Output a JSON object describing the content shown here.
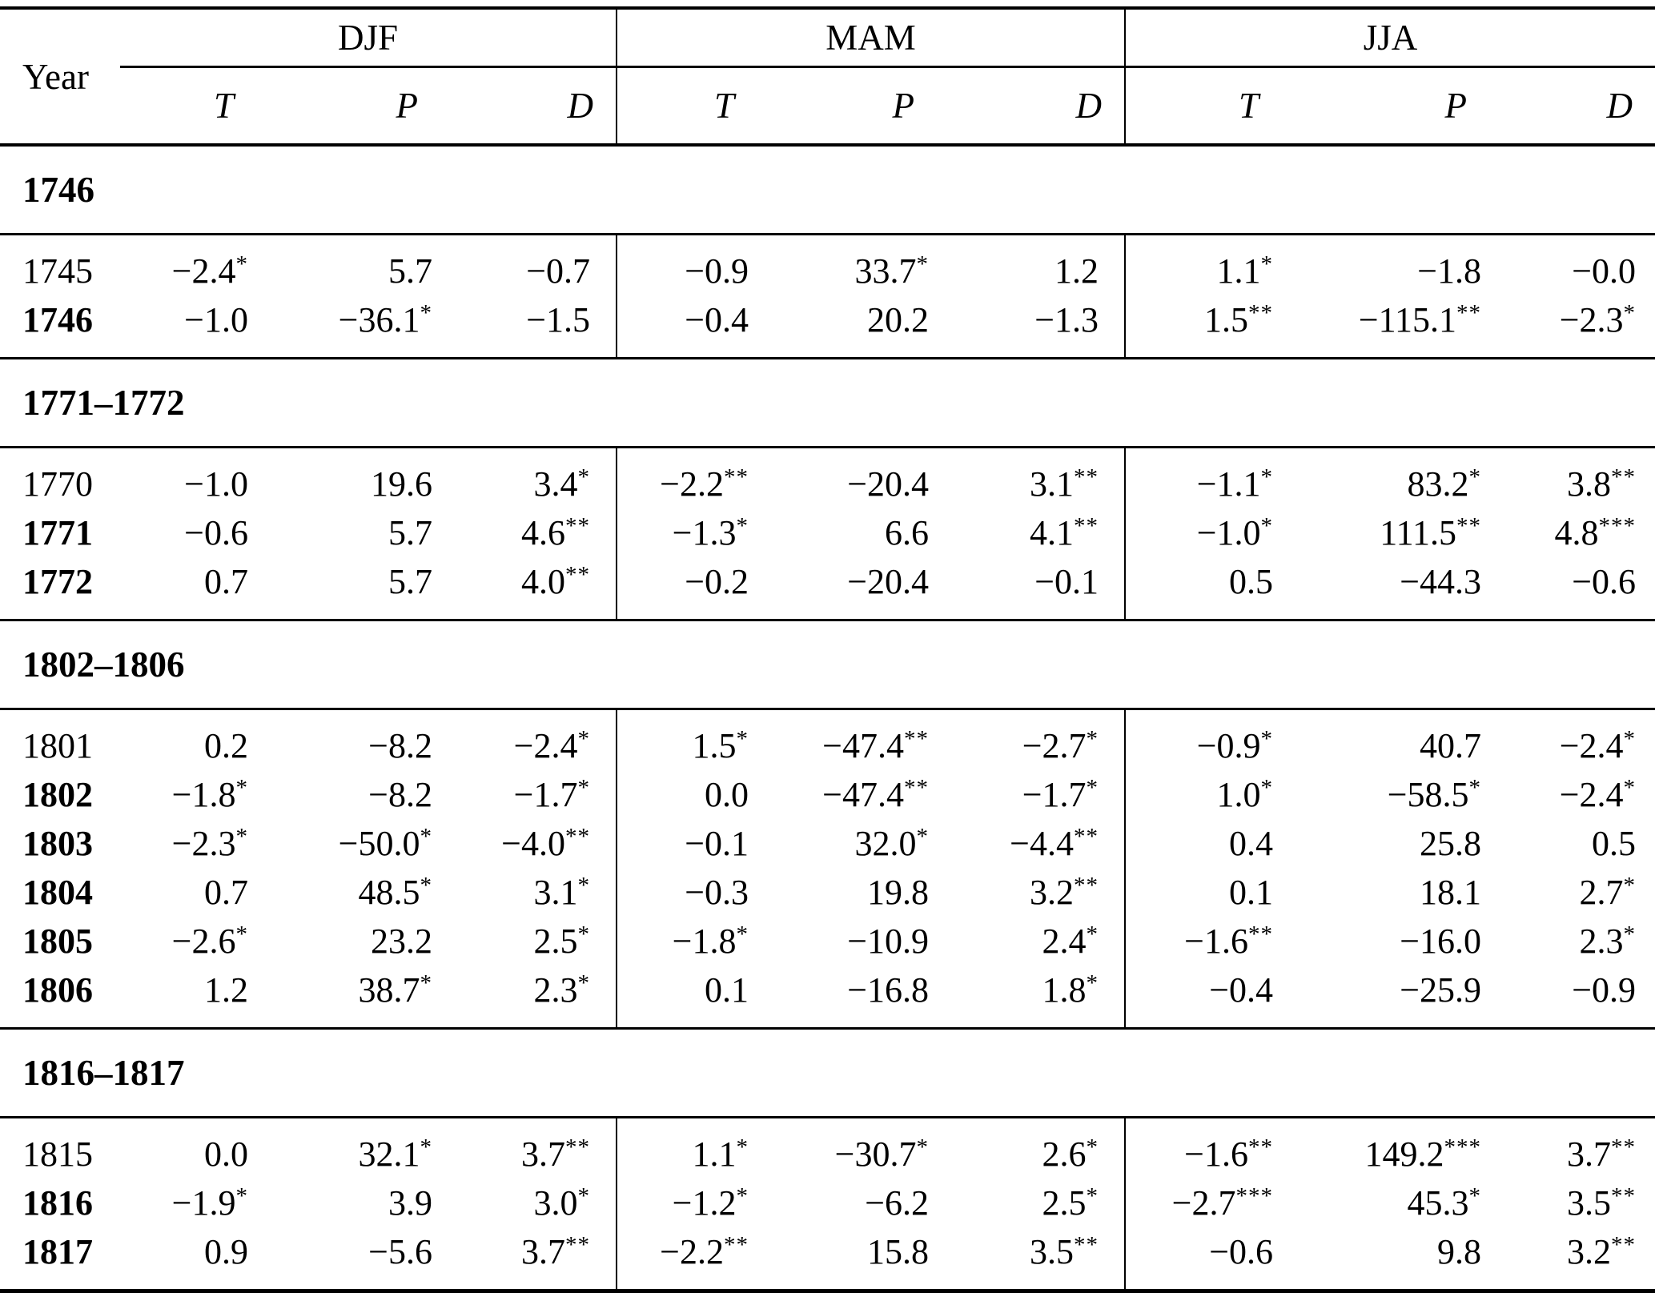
{
  "table": {
    "header": {
      "year": "Year",
      "groups": [
        {
          "label": "DJF",
          "sub": [
            "T",
            "P",
            "D"
          ]
        },
        {
          "label": "MAM",
          "sub": [
            "T",
            "P",
            "D"
          ]
        },
        {
          "label": "JJA",
          "sub": [
            "T",
            "P",
            "D"
          ]
        }
      ]
    },
    "sections": [
      {
        "title": "1746",
        "rows": [
          {
            "year": "1745",
            "bold": false,
            "values": [
              "−2.4*",
              "5.7",
              "−0.7",
              "−0.9",
              "33.7*",
              "1.2",
              "1.1*",
              "−1.8",
              "−0.0"
            ]
          },
          {
            "year": "1746",
            "bold": true,
            "values": [
              "−1.0",
              "−36.1*",
              "−1.5",
              "−0.4",
              "20.2",
              "−1.3",
              "1.5**",
              "−115.1**",
              "−2.3*"
            ]
          }
        ]
      },
      {
        "title": "1771–1772",
        "rows": [
          {
            "year": "1770",
            "bold": false,
            "values": [
              "−1.0",
              "19.6",
              "3.4*",
              "−2.2**",
              "−20.4",
              "3.1**",
              "−1.1*",
              "83.2*",
              "3.8**"
            ]
          },
          {
            "year": "1771",
            "bold": true,
            "values": [
              "−0.6",
              "5.7",
              "4.6**",
              "−1.3*",
              "6.6",
              "4.1**",
              "−1.0*",
              "111.5**",
              "4.8***"
            ]
          },
          {
            "year": "1772",
            "bold": true,
            "values": [
              "0.7",
              "5.7",
              "4.0**",
              "−0.2",
              "−20.4",
              "−0.1",
              "0.5",
              "−44.3",
              "−0.6"
            ]
          }
        ]
      },
      {
        "title": "1802–1806",
        "rows": [
          {
            "year": "1801",
            "bold": false,
            "values": [
              "0.2",
              "−8.2",
              "−2.4*",
              "1.5*",
              "−47.4**",
              "−2.7*",
              "−0.9*",
              "40.7",
              "−2.4*"
            ]
          },
          {
            "year": "1802",
            "bold": true,
            "values": [
              "−1.8*",
              "−8.2",
              "−1.7*",
              "0.0",
              "−47.4**",
              "−1.7*",
              "1.0*",
              "−58.5*",
              "−2.4*"
            ]
          },
          {
            "year": "1803",
            "bold": true,
            "values": [
              "−2.3*",
              "−50.0*",
              "−4.0**",
              "−0.1",
              "32.0*",
              "−4.4**",
              "0.4",
              "25.8",
              "0.5"
            ]
          },
          {
            "year": "1804",
            "bold": true,
            "values": [
              "0.7",
              "48.5*",
              "3.1*",
              "−0.3",
              "19.8",
              "3.2**",
              "0.1",
              "18.1",
              "2.7*"
            ]
          },
          {
            "year": "1805",
            "bold": true,
            "values": [
              "−2.6*",
              "23.2",
              "2.5*",
              "−1.8*",
              "−10.9",
              "2.4*",
              "−1.6**",
              "−16.0",
              "2.3*"
            ]
          },
          {
            "year": "1806",
            "bold": true,
            "values": [
              "1.2",
              "38.7*",
              "2.3*",
              "0.1",
              "−16.8",
              "1.8*",
              "−0.4",
              "−25.9",
              "−0.9"
            ]
          }
        ]
      },
      {
        "title": "1816–1817",
        "rows": [
          {
            "year": "1815",
            "bold": false,
            "values": [
              "0.0",
              "32.1*",
              "3.7**",
              "1.1*",
              "−30.7*",
              "2.6*",
              "−1.6**",
              "149.2***",
              "3.7**"
            ]
          },
          {
            "year": "1816",
            "bold": true,
            "values": [
              "−1.9*",
              "3.9",
              "3.0*",
              "−1.2*",
              "−6.2",
              "2.5*",
              "−2.7***",
              "45.3*",
              "3.5**"
            ]
          },
          {
            "year": "1817",
            "bold": true,
            "values": [
              "0.9",
              "−5.6",
              "3.7**",
              "−2.2**",
              "15.8",
              "3.5**",
              "−0.6",
              "9.8",
              "3.2**"
            ]
          }
        ]
      }
    ]
  }
}
